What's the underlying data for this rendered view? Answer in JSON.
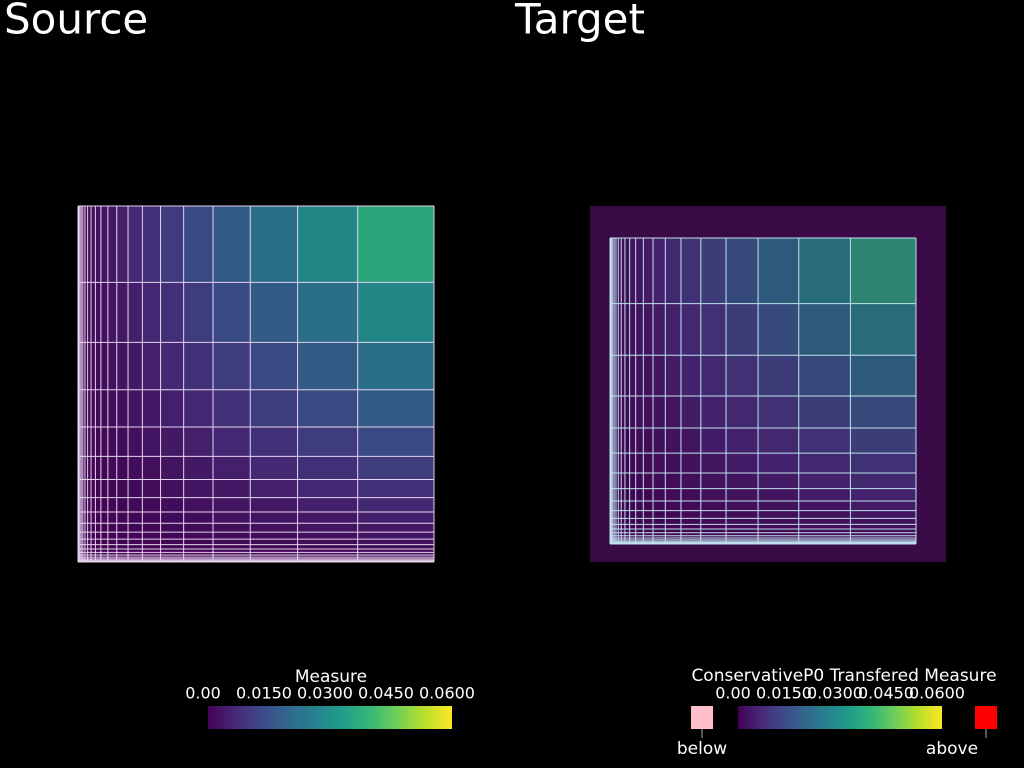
{
  "panels": [
    {
      "title": "Source",
      "scalar_bar": {
        "title": "Measure",
        "ticks": [
          {
            "value": 0,
            "label": "0.00"
          },
          {
            "value": 0.015,
            "label": "0.0150"
          },
          {
            "value": 0.03,
            "label": "0.0300"
          },
          {
            "value": 0.045,
            "label": "0.0450"
          },
          {
            "value": 0.06,
            "label": "0.0600"
          }
        ]
      }
    },
    {
      "title": "Target",
      "scalar_bar": {
        "title": "ConservativeP0 Transfered Measure",
        "ticks": [
          {
            "value": 0,
            "label": "0.00"
          },
          {
            "value": 0.015,
            "label": "0.0150"
          },
          {
            "value": 0.03,
            "label": "0.0300"
          },
          {
            "value": 0.045,
            "label": "0.0450"
          },
          {
            "value": 0.06,
            "label": "0.0600"
          }
        ],
        "below_label": "below",
        "above_label": "above"
      }
    }
  ]
}
